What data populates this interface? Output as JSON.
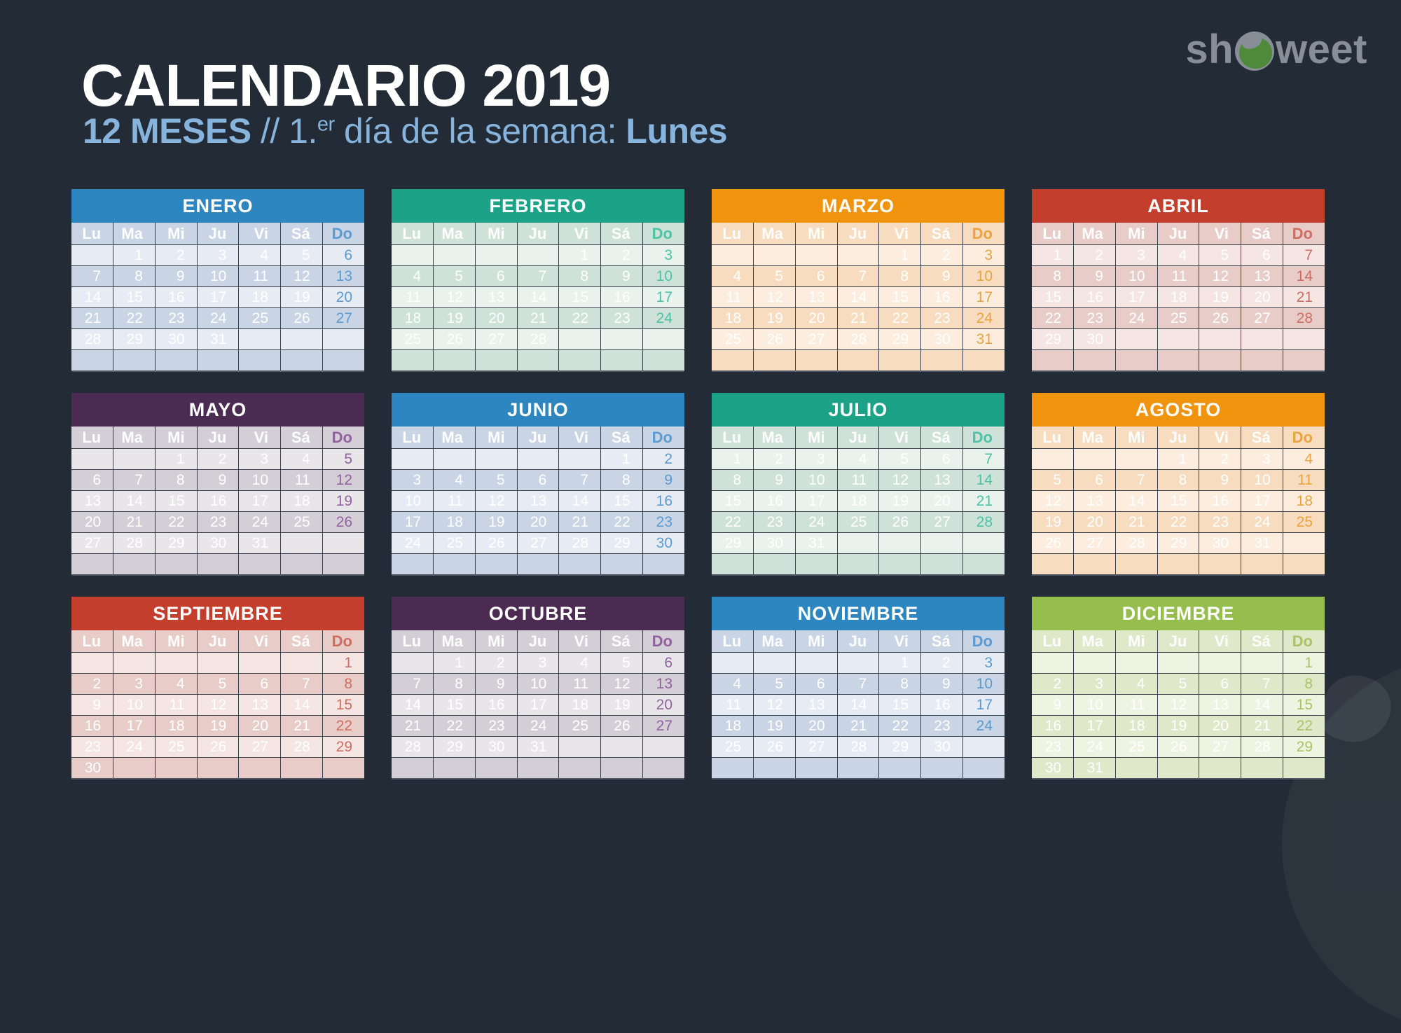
{
  "page": {
    "background": "#232B36"
  },
  "colors": {
    "title": "#FFFFFF",
    "subtitle": "#86B4DD",
    "logo_gray": "#878E98",
    "logo_green": "#4E8A39"
  },
  "header": {
    "title": "CALENDARIO 2019",
    "subtitle": {
      "months_bold": "12 MESES",
      "separator": " // ",
      "ordinal": "1.",
      "ordinal_sup": "er",
      "rest": " día de la semana: ",
      "day_bold": "Lunes"
    }
  },
  "logo": {
    "text_before_o": "sh",
    "text_after_o": "weet"
  },
  "calendar": {
    "day_headers": [
      "Lu",
      "Ma",
      "Mi",
      "Ju",
      "Vi",
      "Sá",
      "Do"
    ],
    "themes": {
      "blue": {
        "header": "#2E86C0",
        "light": "#E7ECF4",
        "dark": "#C9D4E4",
        "sunday": "#5B9BD1"
      },
      "teal": {
        "header": "#1BA287",
        "light": "#EAF2ED",
        "dark": "#CFE2D9",
        "sunday": "#4CC3A6"
      },
      "orange": {
        "header": "#F0940E",
        "light": "#FCEDDE",
        "dark": "#F8DCC0",
        "sunday": "#E9A440"
      },
      "red": {
        "header": "#C43E2E",
        "light": "#F5E6E3",
        "dark": "#E8CCC8",
        "sunday": "#CD6E61"
      },
      "purple": {
        "header": "#4B2B51",
        "light": "#E9E6EA",
        "dark": "#D4CFD7",
        "sunday": "#91619F"
      },
      "green": {
        "header": "#95BE4E",
        "light": "#EEF3E2",
        "dark": "#DFE9CA",
        "sunday": "#A9C368"
      }
    },
    "months": [
      {
        "name": "ENERO",
        "theme": "blue",
        "weeks": [
          [
            "",
            "1",
            "2",
            "3",
            "4",
            "5",
            "6"
          ],
          [
            "7",
            "8",
            "9",
            "10",
            "11",
            "12",
            "13"
          ],
          [
            "14",
            "15",
            "16",
            "17",
            "18",
            "19",
            "20"
          ],
          [
            "21",
            "22",
            "23",
            "24",
            "25",
            "26",
            "27"
          ],
          [
            "28",
            "29",
            "30",
            "31",
            "",
            "",
            ""
          ],
          [
            "",
            "",
            "",
            "",
            "",
            "",
            ""
          ]
        ]
      },
      {
        "name": "FEBRERO",
        "theme": "teal",
        "weeks": [
          [
            "",
            "",
            "",
            "",
            "1",
            "2",
            "3"
          ],
          [
            "4",
            "5",
            "6",
            "7",
            "8",
            "9",
            "10"
          ],
          [
            "11",
            "12",
            "13",
            "14",
            "15",
            "16",
            "17"
          ],
          [
            "18",
            "19",
            "20",
            "21",
            "22",
            "23",
            "24"
          ],
          [
            "25",
            "26",
            "27",
            "28",
            "",
            "",
            ""
          ],
          [
            "",
            "",
            "",
            "",
            "",
            "",
            ""
          ]
        ]
      },
      {
        "name": "MARZO",
        "theme": "orange",
        "weeks": [
          [
            "",
            "",
            "",
            "",
            "1",
            "2",
            "3"
          ],
          [
            "4",
            "5",
            "6",
            "7",
            "8",
            "9",
            "10"
          ],
          [
            "11",
            "12",
            "13",
            "14",
            "15",
            "16",
            "17"
          ],
          [
            "18",
            "19",
            "20",
            "21",
            "22",
            "23",
            "24"
          ],
          [
            "25",
            "26",
            "27",
            "28",
            "29",
            "30",
            "31"
          ],
          [
            "",
            "",
            "",
            "",
            "",
            "",
            ""
          ]
        ]
      },
      {
        "name": "ABRIL",
        "theme": "red",
        "weeks": [
          [
            "1",
            "2",
            "3",
            "4",
            "5",
            "6",
            "7"
          ],
          [
            "8",
            "9",
            "10",
            "11",
            "12",
            "13",
            "14"
          ],
          [
            "15",
            "16",
            "17",
            "18",
            "19",
            "20",
            "21"
          ],
          [
            "22",
            "23",
            "24",
            "25",
            "26",
            "27",
            "28"
          ],
          [
            "29",
            "30",
            "",
            "",
            "",
            "",
            ""
          ],
          [
            "",
            "",
            "",
            "",
            "",
            "",
            ""
          ]
        ]
      },
      {
        "name": "MAYO",
        "theme": "purple",
        "weeks": [
          [
            "",
            "",
            "1",
            "2",
            "3",
            "4",
            "5"
          ],
          [
            "6",
            "7",
            "8",
            "9",
            "10",
            "11",
            "12"
          ],
          [
            "13",
            "14",
            "15",
            "16",
            "17",
            "18",
            "19"
          ],
          [
            "20",
            "21",
            "22",
            "23",
            "24",
            "25",
            "26"
          ],
          [
            "27",
            "28",
            "29",
            "30",
            "31",
            "",
            ""
          ],
          [
            "",
            "",
            "",
            "",
            "",
            "",
            ""
          ]
        ]
      },
      {
        "name": "JUNIO",
        "theme": "blue",
        "weeks": [
          [
            "",
            "",
            "",
            "",
            "",
            "1",
            "2"
          ],
          [
            "3",
            "4",
            "5",
            "6",
            "7",
            "8",
            "9"
          ],
          [
            "10",
            "11",
            "12",
            "13",
            "14",
            "15",
            "16"
          ],
          [
            "17",
            "18",
            "19",
            "20",
            "21",
            "22",
            "23"
          ],
          [
            "24",
            "25",
            "26",
            "27",
            "28",
            "29",
            "30"
          ],
          [
            "",
            "",
            "",
            "",
            "",
            "",
            ""
          ]
        ]
      },
      {
        "name": "JULIO",
        "theme": "teal",
        "weeks": [
          [
            "1",
            "2",
            "3",
            "4",
            "5",
            "6",
            "7"
          ],
          [
            "8",
            "9",
            "10",
            "11",
            "12",
            "13",
            "14"
          ],
          [
            "15",
            "16",
            "17",
            "18",
            "19",
            "20",
            "21"
          ],
          [
            "22",
            "23",
            "24",
            "25",
            "26",
            "27",
            "28"
          ],
          [
            "29",
            "30",
            "31",
            "",
            "",
            "",
            ""
          ],
          [
            "",
            "",
            "",
            "",
            "",
            "",
            ""
          ]
        ]
      },
      {
        "name": "AGOSTO",
        "theme": "orange",
        "weeks": [
          [
            "",
            "",
            "",
            "1",
            "2",
            "3",
            "4"
          ],
          [
            "5",
            "6",
            "7",
            "8",
            "9",
            "10",
            "11"
          ],
          [
            "12",
            "13",
            "14",
            "15",
            "16",
            "17",
            "18"
          ],
          [
            "19",
            "20",
            "21",
            "22",
            "23",
            "24",
            "25"
          ],
          [
            "26",
            "27",
            "28",
            "29",
            "30",
            "31",
            ""
          ],
          [
            "",
            "",
            "",
            "",
            "",
            "",
            ""
          ]
        ]
      },
      {
        "name": "SEPTIEMBRE",
        "theme": "red",
        "weeks": [
          [
            "",
            "",
            "",
            "",
            "",
            "",
            "1"
          ],
          [
            "2",
            "3",
            "4",
            "5",
            "6",
            "7",
            "8"
          ],
          [
            "9",
            "10",
            "11",
            "12",
            "13",
            "14",
            "15"
          ],
          [
            "16",
            "17",
            "18",
            "19",
            "20",
            "21",
            "22"
          ],
          [
            "23",
            "24",
            "25",
            "26",
            "27",
            "28",
            "29"
          ],
          [
            "30",
            "",
            "",
            "",
            "",
            "",
            ""
          ]
        ]
      },
      {
        "name": "OCTUBRE",
        "theme": "purple",
        "weeks": [
          [
            "",
            "1",
            "2",
            "3",
            "4",
            "5",
            "6"
          ],
          [
            "7",
            "8",
            "9",
            "10",
            "11",
            "12",
            "13"
          ],
          [
            "14",
            "15",
            "16",
            "17",
            "18",
            "19",
            "20"
          ],
          [
            "21",
            "22",
            "23",
            "24",
            "25",
            "26",
            "27"
          ],
          [
            "28",
            "29",
            "30",
            "31",
            "",
            "",
            ""
          ],
          [
            "",
            "",
            "",
            "",
            "",
            "",
            ""
          ]
        ]
      },
      {
        "name": "NOVIEMBRE",
        "theme": "blue",
        "weeks": [
          [
            "",
            "",
            "",
            "",
            "1",
            "2",
            "3"
          ],
          [
            "4",
            "5",
            "6",
            "7",
            "8",
            "9",
            "10"
          ],
          [
            "11",
            "12",
            "13",
            "14",
            "15",
            "16",
            "17"
          ],
          [
            "18",
            "19",
            "20",
            "21",
            "22",
            "23",
            "24"
          ],
          [
            "25",
            "26",
            "27",
            "28",
            "29",
            "30",
            ""
          ],
          [
            "",
            "",
            "",
            "",
            "",
            "",
            ""
          ]
        ]
      },
      {
        "name": "DICIEMBRE",
        "theme": "green",
        "weeks": [
          [
            "",
            "",
            "",
            "",
            "",
            "",
            "1"
          ],
          [
            "2",
            "3",
            "4",
            "5",
            "6",
            "7",
            "8"
          ],
          [
            "9",
            "10",
            "11",
            "12",
            "13",
            "14",
            "15"
          ],
          [
            "16",
            "17",
            "18",
            "19",
            "20",
            "21",
            "22"
          ],
          [
            "23",
            "24",
            "25",
            "26",
            "27",
            "28",
            "29"
          ],
          [
            "30",
            "31",
            "",
            "",
            "",
            "",
            ""
          ]
        ]
      }
    ]
  }
}
